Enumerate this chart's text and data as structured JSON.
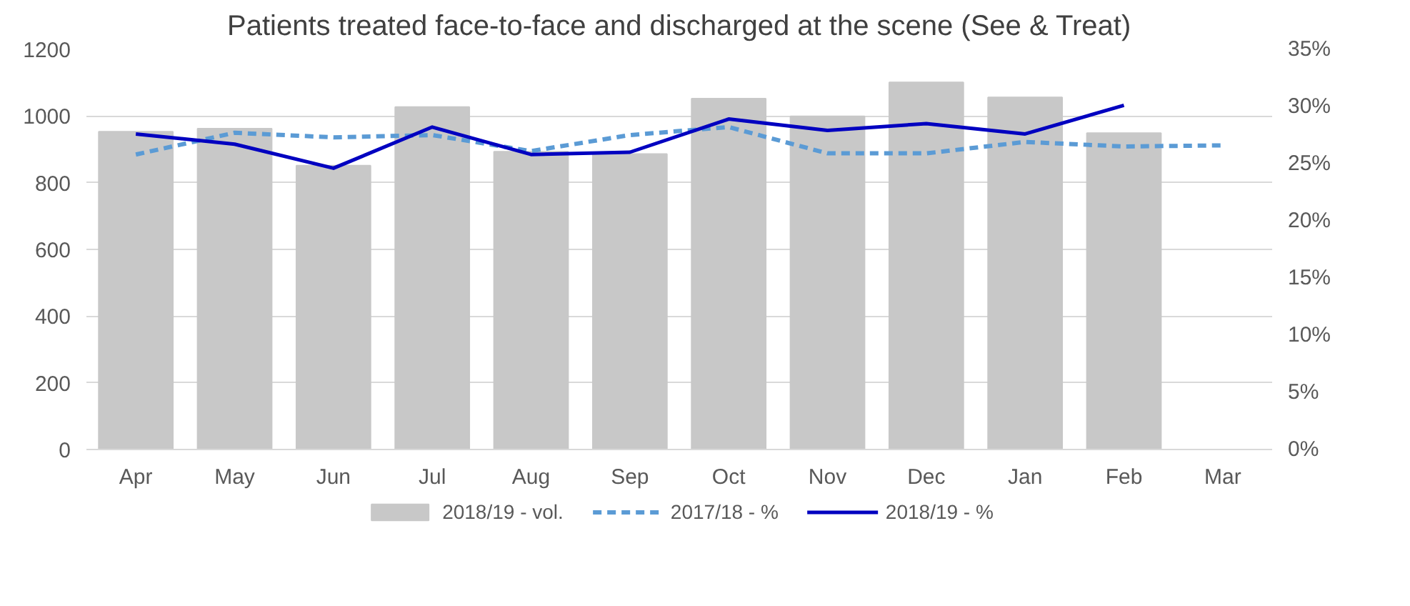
{
  "chart_data": {
    "type": "bar",
    "title": "Patients treated face-to-face and discharged at the scene (See & Treat)",
    "categories": [
      "Apr",
      "May",
      "Jun",
      "Jul",
      "Aug",
      "Sep",
      "Oct",
      "Nov",
      "Dec",
      "Jan",
      "Feb",
      "Mar"
    ],
    "series": [
      {
        "name": "2018/19 - vol.",
        "color": "#c8c8c8",
        "values": [
          953,
          962,
          851,
          1027,
          893,
          886,
          1052,
          999,
          1101,
          1056,
          949,
          null
        ]
      },
      {
        "name": "2017/18 - %",
        "type": "line",
        "axis": "y2",
        "line_style": "dashed",
        "color": "#5b9bd5",
        "values": [
          25.8,
          27.7,
          27.3,
          27.5,
          26.1,
          27.5,
          28.2,
          25.9,
          25.9,
          26.9,
          26.5,
          26.6
        ]
      },
      {
        "name": "2018/19 - %",
        "type": "line",
        "axis": "y2",
        "line_style": "solid",
        "color": "#0000c0",
        "values": [
          27.6,
          26.7,
          24.6,
          28.2,
          25.8,
          26.0,
          28.9,
          27.9,
          28.5,
          27.6,
          30.1,
          null
        ]
      }
    ],
    "ylim": [
      0,
      1200
    ],
    "yticks": [
      0,
      200,
      400,
      600,
      800,
      1000,
      1200
    ],
    "y2lim": [
      0,
      35
    ],
    "y2ticks": [
      {
        "value": 0,
        "label": "0%"
      },
      {
        "value": 5,
        "label": "5%"
      },
      {
        "value": 10,
        "label": "10%"
      },
      {
        "value": 15,
        "label": "15%"
      },
      {
        "value": 20,
        "label": "20%"
      },
      {
        "value": 25,
        "label": "25%"
      },
      {
        "value": 30,
        "label": "30%"
      },
      {
        "value": 35,
        "label": "35%"
      }
    ],
    "grid": "y",
    "legend": "bottom"
  }
}
